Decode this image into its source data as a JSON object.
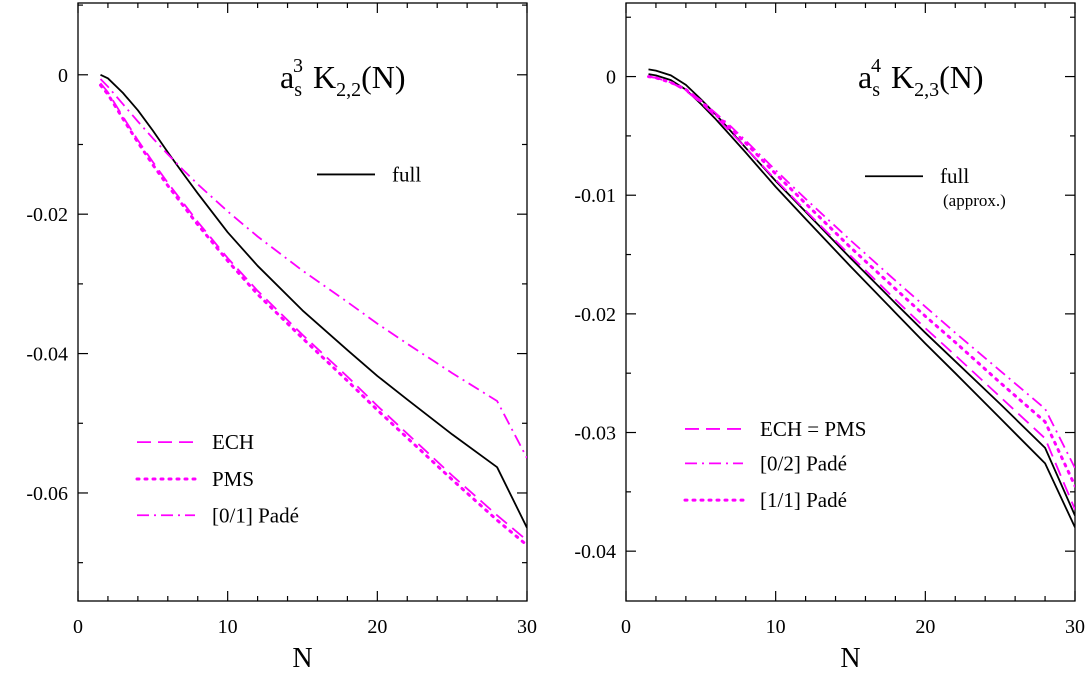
{
  "chart_data": [
    {
      "type": "line",
      "title": "a_s^3 K_{2,2}(N)",
      "title_parts": {
        "base": "a",
        "sub1": "s",
        "sup": "3",
        "main": "K",
        "sub2": "2,2",
        "tail": "(N)"
      },
      "xlabel": "N",
      "ylabel": "",
      "xlim": [
        0,
        30
      ],
      "ylim": [
        -0.0755,
        0.0103
      ],
      "xticks": [
        0,
        10,
        20,
        30
      ],
      "xtick_labels": [
        "0",
        "10",
        "20",
        "30"
      ],
      "yticks": [
        0,
        -0.02,
        -0.04,
        -0.06
      ],
      "ytick_labels": [
        "0",
        "-0.02",
        "-0.04",
        "-0.06"
      ],
      "grid": false,
      "legend": [
        {
          "label": "full",
          "note": "",
          "color": "#000000",
          "style": "solid",
          "legend_y": -0.0143
        },
        {
          "label": "ECH",
          "note": "",
          "color": "#ff00ff",
          "style": "dashed",
          "legend_y": -0.0527
        },
        {
          "label": "PMS",
          "note": "",
          "color": "#ff00ff",
          "style": "dotted",
          "legend_y": -0.058
        },
        {
          "label": "[0/1]  Padé",
          "note": "",
          "color": "#ff00ff",
          "style": "dashdot",
          "legend_y": -0.0632
        }
      ],
      "series": [
        {
          "name": "full",
          "color": "#000000",
          "style": "solid",
          "x": [
            1.5,
            2,
            3,
            4,
            5,
            6,
            7,
            8,
            10,
            12,
            15,
            18,
            20,
            22,
            25,
            28,
            30
          ],
          "y": [
            0,
            -0.0005,
            -0.0026,
            -0.0051,
            -0.008,
            -0.0111,
            -0.0141,
            -0.017,
            -0.0226,
            -0.0274,
            -0.0338,
            -0.0395,
            -0.0432,
            -0.0466,
            -0.0516,
            -0.0563,
            -0.065
          ]
        },
        {
          "name": "ECH",
          "color": "#ff00ff",
          "style": "dashed",
          "x": [
            1.5,
            2,
            3,
            4,
            5,
            6,
            7,
            8,
            10,
            12,
            15,
            18,
            20,
            22,
            25,
            28,
            30
          ],
          "y": [
            -0.0012,
            -0.0025,
            -0.006,
            -0.0094,
            -0.0125,
            -0.0155,
            -0.0183,
            -0.0211,
            -0.0263,
            -0.031,
            -0.0373,
            -0.0433,
            -0.0475,
            -0.0515,
            -0.0575,
            -0.0632,
            -0.0668
          ]
        },
        {
          "name": "PMS",
          "color": "#ff00ff",
          "style": "dotted",
          "x": [
            1.5,
            2,
            3,
            4,
            5,
            6,
            7,
            8,
            10,
            12,
            15,
            18,
            20,
            22,
            25,
            28,
            30
          ],
          "y": [
            -0.0015,
            -0.0028,
            -0.0063,
            -0.0097,
            -0.0129,
            -0.0159,
            -0.0187,
            -0.0215,
            -0.0267,
            -0.0315,
            -0.0378,
            -0.0439,
            -0.0481,
            -0.0521,
            -0.0581,
            -0.0639,
            -0.0675
          ]
        },
        {
          "name": "[0/1]  Padé",
          "color": "#ff00ff",
          "style": "dashdot",
          "x": [
            1.5,
            2,
            3,
            4,
            5,
            6,
            7,
            8,
            10,
            12,
            15,
            18,
            20,
            22,
            25,
            28,
            30
          ],
          "y": [
            -0.0006,
            -0.0017,
            -0.0042,
            -0.0067,
            -0.0091,
            -0.0114,
            -0.0136,
            -0.0157,
            -0.0196,
            -0.0232,
            -0.0281,
            -0.0326,
            -0.0357,
            -0.0386,
            -0.0428,
            -0.0468,
            -0.055
          ]
        }
      ]
    },
    {
      "type": "line",
      "title": "a_s^4 K_{2,3}(N)",
      "title_parts": {
        "base": "a",
        "sub1": "s",
        "sup": "4",
        "main": "K",
        "sub2": "2,3",
        "tail": "(N)"
      },
      "xlabel": "N",
      "ylabel": "",
      "xlim": [
        0,
        30
      ],
      "ylim": [
        -0.0442,
        0.0062
      ],
      "xticks": [
        0,
        10,
        20,
        30
      ],
      "xtick_labels": [
        "0",
        "10",
        "20",
        "30"
      ],
      "yticks": [
        0,
        -0.01,
        -0.02,
        -0.03,
        -0.04
      ],
      "ytick_labels": [
        "0",
        "-0.01",
        "-0.02",
        "-0.03",
        "-0.04"
      ],
      "grid": false,
      "legend": [
        {
          "label": "full",
          "note": "(approx.)",
          "color": "#000000",
          "style": "solid",
          "legend_y": -0.0084
        },
        {
          "label": "ECH = PMS",
          "note": "",
          "color": "#ff00ff",
          "style": "dashed",
          "legend_y": -0.0297
        },
        {
          "label": "[0/2]  Padé",
          "note": "",
          "color": "#ff00ff",
          "style": "dashdot",
          "legend_y": -0.0326
        },
        {
          "label": "[1/1]  Padé",
          "note": "",
          "color": "#ff00ff",
          "style": "dotted",
          "legend_y": -0.0357
        }
      ],
      "series": [
        {
          "name": "full",
          "color": "#000000",
          "style": "solid",
          "x": [
            1.5,
            2,
            3,
            4,
            5,
            6,
            7,
            8,
            10,
            12,
            15,
            18,
            20,
            22,
            25,
            28,
            30
          ],
          "y": [
            0.0006,
            0.0005,
            0.0001,
            -0.0007,
            -0.0019,
            -0.0032,
            -0.0046,
            -0.006,
            -0.0088,
            -0.0114,
            -0.0153,
            -0.0191,
            -0.0216,
            -0.024,
            -0.0276,
            -0.0313,
            -0.037
          ]
        },
        {
          "name": "full",
          "color": "#000000",
          "style": "solid",
          "x": [
            1.5,
            2,
            3,
            4,
            5,
            6,
            7,
            8,
            10,
            12,
            15,
            18,
            20,
            22,
            25,
            28,
            30
          ],
          "y": [
            0.0002,
            0.0001,
            -0.0003,
            -0.0011,
            -0.0023,
            -0.0036,
            -0.005,
            -0.0064,
            -0.0093,
            -0.012,
            -0.016,
            -0.0199,
            -0.0225,
            -0.025,
            -0.0288,
            -0.0326,
            -0.038
          ]
        },
        {
          "name": "ECH = PMS",
          "color": "#ff00ff",
          "style": "dashed",
          "x": [
            1.5,
            2,
            3,
            4,
            5,
            6,
            7,
            8,
            10,
            12,
            15,
            18,
            20,
            22,
            25,
            28,
            30
          ],
          "y": [
            0,
            -0.0001,
            -0.0005,
            -0.0012,
            -0.0022,
            -0.0034,
            -0.0047,
            -0.006,
            -0.0087,
            -0.0113,
            -0.0151,
            -0.0188,
            -0.0212,
            -0.0235,
            -0.027,
            -0.0305,
            -0.0365
          ]
        },
        {
          "name": "[0/2]  Padé",
          "color": "#ff00ff",
          "style": "dashdot",
          "x": [
            1.5,
            2,
            3,
            4,
            5,
            6,
            7,
            8,
            10,
            12,
            15,
            18,
            20,
            22,
            25,
            28,
            30
          ],
          "y": [
            0,
            -0.0001,
            -0.0005,
            -0.0011,
            -0.002,
            -0.0031,
            -0.0042,
            -0.0054,
            -0.0079,
            -0.0103,
            -0.0138,
            -0.0172,
            -0.0194,
            -0.0216,
            -0.0248,
            -0.028,
            -0.033
          ]
        },
        {
          "name": "[1/1]  Padé",
          "color": "#ff00ff",
          "style": "dotted",
          "x": [
            1.5,
            2,
            3,
            4,
            5,
            6,
            7,
            8,
            10,
            12,
            15,
            18,
            20,
            22,
            25,
            28,
            30
          ],
          "y": [
            0,
            -0.0001,
            -0.0005,
            -0.0011,
            -0.0021,
            -0.0032,
            -0.0044,
            -0.0056,
            -0.0082,
            -0.0107,
            -0.0144,
            -0.0179,
            -0.0202,
            -0.0224,
            -0.0258,
            -0.0291,
            -0.0345
          ]
        }
      ]
    }
  ]
}
